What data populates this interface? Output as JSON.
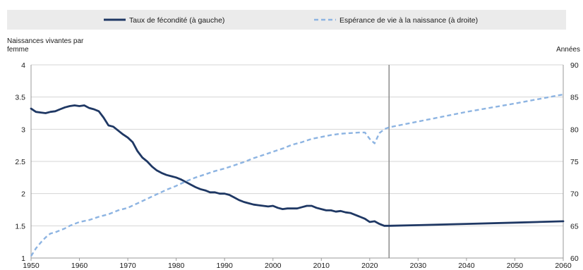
{
  "chart_data": {
    "type": "line",
    "legend": {
      "position": "top",
      "entries": [
        {
          "label": "Taux de fécondité (à gauche)",
          "color": "#1f3864",
          "style": "solid"
        },
        {
          "label": "Espérance de vie à la naissance (à droite)",
          "color": "#8db4e2",
          "style": "dashed"
        }
      ]
    },
    "yleft": {
      "title_lines": [
        "Naissances vivantes par",
        "femme"
      ],
      "range": [
        1,
        4
      ],
      "ticks": [
        "1",
        "1.5",
        "2",
        "2.5",
        "3",
        "3.5",
        "4"
      ]
    },
    "yright": {
      "title": "Années",
      "range": [
        60,
        90
      ],
      "ticks": [
        "60",
        "65",
        "70",
        "75",
        "80",
        "85",
        "90"
      ]
    },
    "x": {
      "range": [
        1950,
        2060
      ],
      "ticks": [
        "1950",
        "1960",
        "1970",
        "1980",
        "1990",
        "2000",
        "2010",
        "2020",
        "2030",
        "2040",
        "2050",
        "2060"
      ]
    },
    "reference_line_year": 2024,
    "series": [
      {
        "name": "Taux de fécondité (à gauche)",
        "axis": "left",
        "x": [
          1950,
          1951,
          1952,
          1953,
          1954,
          1955,
          1956,
          1957,
          1958,
          1959,
          1960,
          1961,
          1962,
          1963,
          1964,
          1965,
          1966,
          1967,
          1968,
          1969,
          1970,
          1971,
          1972,
          1973,
          1974,
          1975,
          1976,
          1977,
          1978,
          1979,
          1980,
          1981,
          1982,
          1983,
          1984,
          1985,
          1986,
          1987,
          1988,
          1989,
          1990,
          1991,
          1992,
          1993,
          1994,
          1995,
          1996,
          1997,
          1998,
          1999,
          2000,
          2001,
          2002,
          2003,
          2004,
          2005,
          2006,
          2007,
          2008,
          2009,
          2010,
          2011,
          2012,
          2013,
          2014,
          2015,
          2016,
          2017,
          2018,
          2019,
          2020,
          2021,
          2022,
          2023,
          2024,
          2030,
          2040,
          2050,
          2060
        ],
        "y": [
          3.32,
          3.27,
          3.26,
          3.25,
          3.27,
          3.28,
          3.31,
          3.34,
          3.36,
          3.37,
          3.36,
          3.37,
          3.33,
          3.31,
          3.28,
          3.18,
          3.06,
          3.04,
          2.98,
          2.92,
          2.87,
          2.8,
          2.66,
          2.56,
          2.5,
          2.42,
          2.36,
          2.32,
          2.29,
          2.27,
          2.25,
          2.22,
          2.18,
          2.14,
          2.1,
          2.07,
          2.05,
          2.02,
          2.02,
          2.0,
          2.0,
          1.98,
          1.94,
          1.9,
          1.87,
          1.85,
          1.83,
          1.82,
          1.81,
          1.8,
          1.81,
          1.78,
          1.76,
          1.77,
          1.77,
          1.77,
          1.79,
          1.81,
          1.81,
          1.78,
          1.76,
          1.74,
          1.74,
          1.72,
          1.73,
          1.71,
          1.7,
          1.67,
          1.64,
          1.61,
          1.56,
          1.57,
          1.53,
          1.5,
          1.5,
          1.51,
          1.53,
          1.55,
          1.57
        ],
        "color": "#1f3864"
      },
      {
        "name": "Espérance de vie à la naissance (à droite)",
        "axis": "right",
        "x": [
          1950,
          1951,
          1952,
          1953,
          1954,
          1955,
          1956,
          1957,
          1958,
          1959,
          1960,
          1962,
          1964,
          1966,
          1968,
          1970,
          1972,
          1974,
          1976,
          1978,
          1980,
          1982,
          1984,
          1986,
          1988,
          1990,
          1992,
          1994,
          1996,
          1998,
          2000,
          2002,
          2004,
          2006,
          2008,
          2010,
          2012,
          2014,
          2016,
          2018,
          2019,
          2020,
          2021,
          2022,
          2023,
          2024,
          2030,
          2040,
          2050,
          2060
        ],
        "y": [
          60.3,
          61.5,
          62.4,
          63.2,
          63.8,
          64.0,
          64.3,
          64.6,
          65.0,
          65.3,
          65.6,
          65.9,
          66.4,
          66.8,
          67.4,
          67.8,
          68.5,
          69.2,
          69.9,
          70.6,
          71.2,
          71.9,
          72.5,
          73.0,
          73.5,
          73.9,
          74.4,
          74.9,
          75.5,
          76.0,
          76.5,
          77.0,
          77.6,
          78.0,
          78.5,
          78.8,
          79.1,
          79.3,
          79.4,
          79.5,
          79.5,
          78.5,
          77.8,
          79.4,
          80.0,
          80.3,
          81.2,
          82.7,
          84.0,
          85.4
        ],
        "color": "#8db4e2"
      }
    ]
  }
}
